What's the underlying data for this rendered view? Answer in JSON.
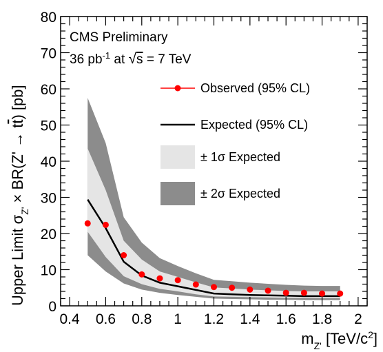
{
  "chart_data": {
    "type": "line",
    "title": "",
    "info_lines": [
      "CMS Preliminary",
      "36 pb⁻¹ at √s = 7 TeV"
    ],
    "xlabel": "m_{Z'} [TeV/c^{2}]",
    "ylabel": "Upper Limit σ_{Z'} × BR(Z' → t̅t) [pb]",
    "xlim": [
      0.35,
      2.05
    ],
    "ylim": [
      0,
      80
    ],
    "x_ticks": [
      0.4,
      0.6,
      0.8,
      1,
      1.2,
      1.4,
      1.6,
      1.8,
      2
    ],
    "x_tick_labels": [
      "0.4",
      "0.6",
      "0.8",
      "1",
      "1.2",
      "1.4",
      "1.6",
      "1.8",
      "2"
    ],
    "y_ticks": [
      0,
      10,
      20,
      30,
      40,
      50,
      60,
      70,
      80
    ],
    "y_tick_labels": [
      "0",
      "10",
      "20",
      "30",
      "40",
      "50",
      "60",
      "70",
      "80"
    ],
    "series": [
      {
        "name": "Observed (95% CL)",
        "style": "points",
        "color": "#ff0000",
        "x": [
          0.5,
          0.6,
          0.7,
          0.8,
          0.9,
          1.0,
          1.1,
          1.2,
          1.3,
          1.4,
          1.5,
          1.6,
          1.7,
          1.8,
          1.9
        ],
        "y": [
          22.8,
          22.4,
          14.0,
          8.7,
          7.6,
          7.1,
          5.9,
          5.2,
          5.0,
          4.5,
          4.2,
          3.6,
          3.6,
          3.4,
          3.4
        ]
      },
      {
        "name": "Expected (95% CL)",
        "style": "line",
        "color": "#000000",
        "x": [
          0.5,
          0.6,
          0.7,
          0.8,
          0.9,
          1.0,
          1.1,
          1.2,
          1.3,
          1.4,
          1.5,
          1.6,
          1.7,
          1.8,
          1.9
        ],
        "y": [
          29.4,
          21.5,
          12.2,
          8.4,
          6.4,
          5.4,
          4.4,
          3.4,
          3.2,
          3.0,
          2.9,
          2.8,
          2.7,
          2.7,
          2.7
        ]
      },
      {
        "name": "± 1σ Expected",
        "style": "band",
        "color": "#e5e5e5",
        "x": [
          0.5,
          0.6,
          0.7,
          0.8,
          0.9,
          1.0,
          1.1,
          1.2,
          1.3,
          1.4,
          1.5,
          1.6,
          1.7,
          1.8,
          1.9
        ],
        "low": [
          20.5,
          13.5,
          8.2,
          6.0,
          4.7,
          4.0,
          3.2,
          2.6,
          2.5,
          2.4,
          2.3,
          2.2,
          2.2,
          2.1,
          2.1
        ],
        "high": [
          43.5,
          32.0,
          18.0,
          12.8,
          9.5,
          8.0,
          6.5,
          5.1,
          4.8,
          4.5,
          4.3,
          4.1,
          4.0,
          4.0,
          4.0
        ]
      },
      {
        "name": "± 2σ Expected",
        "style": "band",
        "color": "#8c8c8c",
        "x": [
          0.5,
          0.6,
          0.7,
          0.8,
          0.9,
          1.0,
          1.1,
          1.2,
          1.3,
          1.4,
          1.5,
          1.6,
          1.7,
          1.8,
          1.9
        ],
        "low": [
          14.0,
          9.5,
          6.2,
          4.5,
          3.6,
          3.0,
          2.5,
          2.0,
          1.9,
          1.8,
          1.7,
          1.7,
          1.6,
          1.6,
          1.6
        ],
        "high": [
          57.5,
          45.0,
          24.5,
          17.5,
          13.2,
          11.0,
          9.0,
          7.2,
          6.8,
          6.4,
          6.1,
          5.8,
          5.6,
          5.5,
          5.5
        ]
      }
    ],
    "legend": [
      {
        "label": "Observed (95% CL)",
        "kind": "points",
        "color": "#ff0000"
      },
      {
        "label": "Expected (95% CL)",
        "kind": "line",
        "color": "#000000"
      },
      {
        "label": "± 1σ Expected",
        "kind": "band",
        "color": "#e5e5e5"
      },
      {
        "label": "± 2σ Expected",
        "kind": "band",
        "color": "#8c8c8c"
      }
    ],
    "legend_position": "top-right",
    "grid": false
  }
}
